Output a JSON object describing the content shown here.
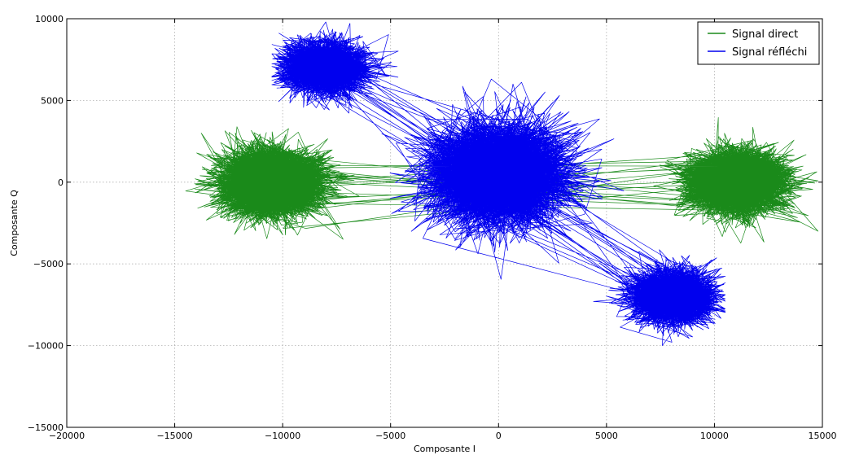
{
  "chart_data": {
    "type": "line",
    "title": "",
    "xlabel": "Composante I",
    "ylabel": "Composante Q",
    "xlim": [
      -20000,
      15000
    ],
    "ylim": [
      -15000,
      10000
    ],
    "x_ticks": [
      -20000,
      -15000,
      -10000,
      -5000,
      0,
      5000,
      10000,
      15000
    ],
    "y_ticks": [
      -15000,
      -10000,
      -5000,
      0,
      5000,
      10000
    ],
    "x_tick_labels": [
      "−20000",
      "−15000",
      "−10000",
      "−5000",
      "0",
      "5000",
      "10000",
      "15000"
    ],
    "y_tick_labels": [
      "−15000",
      "−10000",
      "−5000",
      "0",
      "5000",
      "10000"
    ],
    "grid": true,
    "legend_position": "top-right",
    "series": [
      {
        "name": "Signal direct",
        "color": "#1a8a1a",
        "clusters": [
          {
            "center": [
              -10500,
              0
            ],
            "spread": [
              1500,
              1300
            ]
          },
          {
            "center": [
              11000,
              0
            ],
            "spread": [
              1500,
              1300
            ]
          }
        ],
        "x_range": [
          -15300,
          14800
        ],
        "y_range": [
          -4600,
          4900
        ]
      },
      {
        "name": "Signal réfléchi",
        "color": "#0000ee",
        "clusters": [
          {
            "center": [
              -8000,
              7000
            ],
            "spread": [
              1300,
              1100
            ]
          },
          {
            "center": [
              0,
              500
            ],
            "spread": [
              2100,
              2100
            ]
          },
          {
            "center": [
              8000,
              -7000
            ],
            "spread": [
              1300,
              1100
            ]
          }
        ],
        "x_range": [
          -10500,
          10500
        ],
        "y_range": [
          -10000,
          9800
        ]
      }
    ]
  }
}
